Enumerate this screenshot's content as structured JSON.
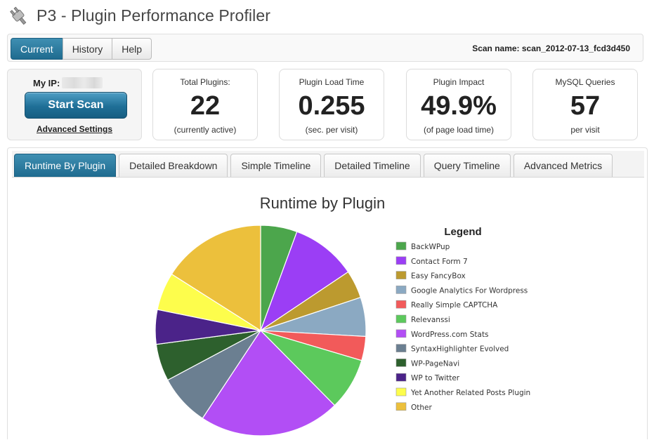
{
  "header": {
    "title": "P3 - Plugin Performance Profiler"
  },
  "view_tabs": [
    "Current",
    "History",
    "Help"
  ],
  "scan_name": "Scan name: scan_2012-07-13_fcd3d450",
  "scan_box": {
    "ip_label": "My IP:",
    "start_button": "Start Scan",
    "advanced_link": "Advanced Settings"
  },
  "metrics": [
    {
      "label": "Total Plugins:",
      "value": "22",
      "sub": "(currently active)"
    },
    {
      "label": "Plugin Load Time",
      "value": "0.255",
      "sub": "(sec. per visit)"
    },
    {
      "label": "Plugin Impact",
      "value": "49.9%",
      "sub": "(of page load time)"
    },
    {
      "label": "MySQL Queries",
      "value": "57",
      "sub": "per visit"
    }
  ],
  "chart_tabs": [
    "Runtime By Plugin",
    "Detailed Breakdown",
    "Simple Timeline",
    "Detailed Timeline",
    "Query Timeline",
    "Advanced Metrics"
  ],
  "colors": {
    "accent": "#1f6b8f"
  },
  "chart_data": {
    "type": "pie",
    "title": "Runtime by Plugin",
    "legend_title": "Legend",
    "legend_position": "right",
    "slices": [
      {
        "label": "BackWPup",
        "value": 5.6,
        "color": "#4ca64c"
      },
      {
        "label": "Contact Form 7",
        "value": 10.0,
        "color": "#9b3ef5"
      },
      {
        "label": "Easy FancyBox",
        "value": 4.3,
        "color": "#bc9a2f"
      },
      {
        "label": "Google Analytics For Wordpress",
        "value": 6.0,
        "color": "#8ba9c2"
      },
      {
        "label": "Really Simple CAPTCHA",
        "value": 3.7,
        "color": "#f25a5a"
      },
      {
        "label": "Relevanssi",
        "value": 8.0,
        "color": "#5cc95c"
      },
      {
        "label": "WordPress.com Stats",
        "value": 21.7,
        "color": "#b24ef5"
      },
      {
        "label": "SyntaxHighlighter Evolved",
        "value": 7.9,
        "color": "#6b7f91"
      },
      {
        "label": "WP-PageNavi",
        "value": 5.7,
        "color": "#2d602d"
      },
      {
        "label": "WP to Twitter",
        "value": 5.3,
        "color": "#4b2389"
      },
      {
        "label": "Yet Another Related Posts Plugin",
        "value": 5.8,
        "color": "#fdfd4c"
      },
      {
        "label": "Other",
        "value": 16.0,
        "color": "#ecc03c"
      }
    ]
  }
}
